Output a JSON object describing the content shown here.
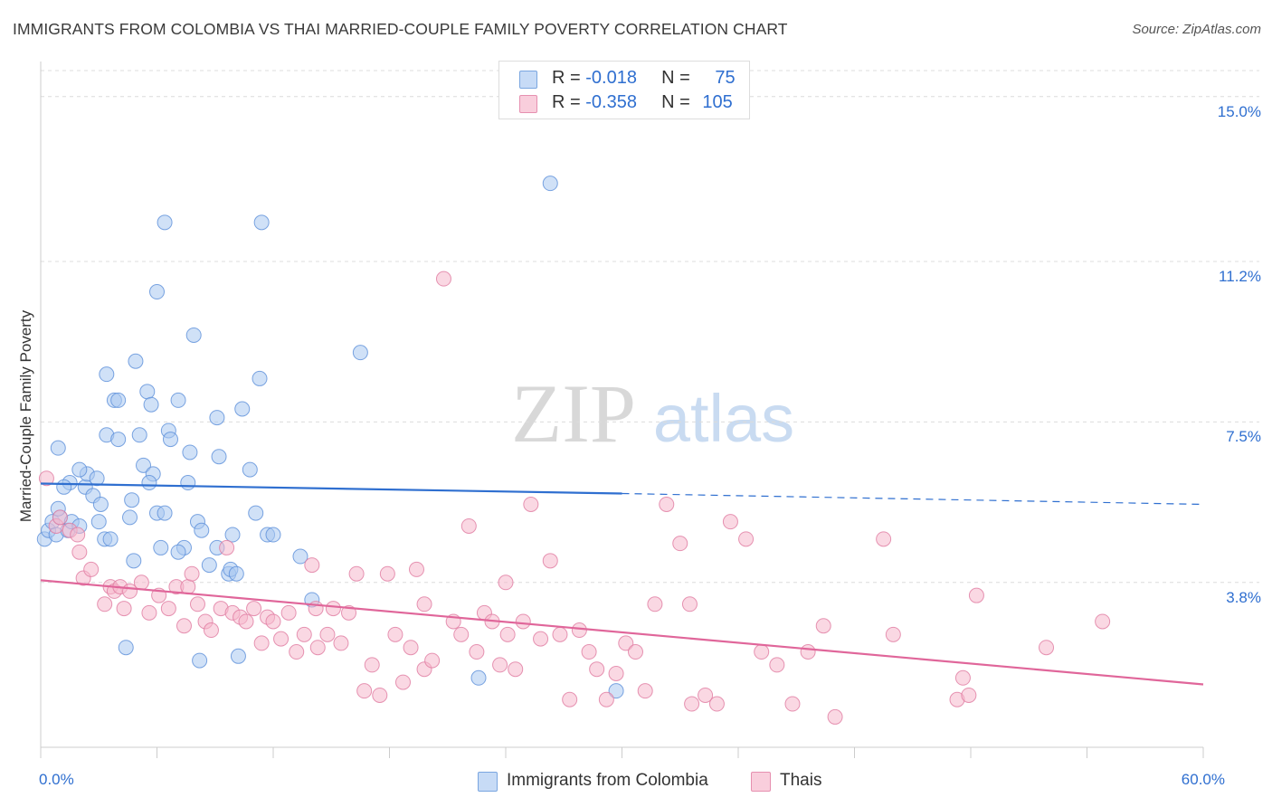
{
  "header": {
    "title": "IMMIGRANTS FROM COLOMBIA VS THAI MARRIED-COUPLE FAMILY POVERTY CORRELATION CHART",
    "source": "Source: ZipAtlas.com"
  },
  "watermark": {
    "zip": "ZIP",
    "atlas": "atlas"
  },
  "stats": [
    {
      "r_label": "R = ",
      "r_value": "-0.018",
      "n_label": "N = ",
      "n_value": "75",
      "color": "#aac8f0"
    },
    {
      "r_label": "R = ",
      "r_value": "-0.358",
      "n_label": "N = ",
      "n_value": "105",
      "color": "#f5b8cc"
    }
  ],
  "legend": [
    {
      "label": "Immigrants from Colombia",
      "color": "#aac8f0"
    },
    {
      "label": "Thais",
      "color": "#f5b8cc"
    }
  ],
  "chart_data": {
    "type": "scatter",
    "xlabel": "",
    "ylabel": "Married-Couple Family Poverty",
    "xlim": [
      0,
      60
    ],
    "ylim": [
      0,
      15.6
    ],
    "x_tick_labels": [
      {
        "value": 0,
        "label": "0.0%"
      },
      {
        "value": 60,
        "label": "60.0%"
      }
    ],
    "y_tick_labels": [
      {
        "value": 3.8,
        "label": "3.8%"
      },
      {
        "value": 7.5,
        "label": "7.5%"
      },
      {
        "value": 11.2,
        "label": "11.2%"
      },
      {
        "value": 15.0,
        "label": "15.0%"
      }
    ],
    "grid": "horizontal dashed",
    "legend_position": "bottom-center",
    "series": [
      {
        "name": "Immigrants from Colombia",
        "color": "#5b8fd9",
        "fill": "#aac8f0",
        "trend": {
          "x0": 0,
          "y0": 6.08,
          "x1": 30,
          "y1": 5.85,
          "x_dash_end": 60,
          "y_dash_end": 5.6
        },
        "points": [
          [
            0.2,
            4.8
          ],
          [
            0.4,
            5.0
          ],
          [
            0.6,
            5.2
          ],
          [
            0.8,
            4.9
          ],
          [
            1.0,
            5.3
          ],
          [
            0.9,
            5.5
          ],
          [
            0.9,
            6.9
          ],
          [
            1.4,
            5.0
          ],
          [
            1.6,
            5.2
          ],
          [
            1.5,
            6.1
          ],
          [
            2.0,
            5.1
          ],
          [
            2.3,
            6.0
          ],
          [
            2.4,
            6.3
          ],
          [
            2.0,
            6.4
          ],
          [
            2.7,
            5.8
          ],
          [
            3.0,
            5.2
          ],
          [
            3.3,
            4.8
          ],
          [
            3.1,
            5.6
          ],
          [
            3.4,
            8.6
          ],
          [
            3.8,
            8.0
          ],
          [
            3.4,
            7.2
          ],
          [
            4.0,
            8.0
          ],
          [
            4.0,
            7.1
          ],
          [
            4.7,
            5.7
          ],
          [
            4.6,
            5.3
          ],
          [
            4.9,
            8.9
          ],
          [
            5.1,
            7.2
          ],
          [
            5.3,
            6.5
          ],
          [
            5.5,
            8.2
          ],
          [
            5.7,
            7.9
          ],
          [
            5.8,
            6.3
          ],
          [
            6.0,
            5.4
          ],
          [
            6.2,
            4.6
          ],
          [
            6.0,
            10.5
          ],
          [
            6.4,
            12.1
          ],
          [
            6.6,
            7.3
          ],
          [
            6.7,
            7.1
          ],
          [
            7.1,
            8.0
          ],
          [
            7.4,
            4.6
          ],
          [
            7.6,
            6.1
          ],
          [
            7.7,
            6.8
          ],
          [
            7.9,
            9.5
          ],
          [
            8.1,
            5.2
          ],
          [
            8.3,
            5.0
          ],
          [
            8.7,
            4.2
          ],
          [
            9.1,
            7.6
          ],
          [
            9.1,
            4.6
          ],
          [
            9.7,
            4.0
          ],
          [
            9.8,
            4.1
          ],
          [
            9.9,
            4.9
          ],
          [
            10.1,
            4.0
          ],
          [
            10.4,
            7.8
          ],
          [
            10.8,
            6.4
          ],
          [
            11.1,
            5.4
          ],
          [
            11.3,
            8.5
          ],
          [
            11.4,
            12.1
          ],
          [
            11.7,
            4.9
          ],
          [
            12.0,
            4.9
          ],
          [
            13.4,
            4.4
          ],
          [
            14.0,
            3.4
          ],
          [
            16.5,
            9.1
          ],
          [
            26.3,
            13.0
          ],
          [
            29.7,
            1.3
          ],
          [
            22.6,
            1.6
          ],
          [
            8.2,
            2.0
          ],
          [
            10.2,
            2.1
          ],
          [
            4.4,
            2.3
          ],
          [
            4.8,
            4.3
          ],
          [
            3.6,
            4.8
          ],
          [
            6.4,
            5.4
          ],
          [
            7.1,
            4.5
          ],
          [
            2.9,
            6.2
          ],
          [
            1.2,
            6.0
          ],
          [
            5.6,
            6.1
          ],
          [
            9.2,
            6.7
          ]
        ]
      },
      {
        "name": "Thais",
        "color": "#e07aa0",
        "fill": "#f5b8cc",
        "trend": {
          "x0": 0,
          "y0": 3.85,
          "x1": 60,
          "y1": 1.45
        },
        "points": [
          [
            0.3,
            6.2
          ],
          [
            0.8,
            5.1
          ],
          [
            1.0,
            5.3
          ],
          [
            1.5,
            5.0
          ],
          [
            1.9,
            4.9
          ],
          [
            2.0,
            4.5
          ],
          [
            2.2,
            3.9
          ],
          [
            2.6,
            4.1
          ],
          [
            3.3,
            3.3
          ],
          [
            3.6,
            3.7
          ],
          [
            3.8,
            3.6
          ],
          [
            4.1,
            3.7
          ],
          [
            4.3,
            3.2
          ],
          [
            4.6,
            3.6
          ],
          [
            5.2,
            3.8
          ],
          [
            5.6,
            3.1
          ],
          [
            6.1,
            3.5
          ],
          [
            6.6,
            3.2
          ],
          [
            7.0,
            3.7
          ],
          [
            7.4,
            2.8
          ],
          [
            7.6,
            3.7
          ],
          [
            7.8,
            4.0
          ],
          [
            8.1,
            3.3
          ],
          [
            8.5,
            2.9
          ],
          [
            8.8,
            2.7
          ],
          [
            9.3,
            3.2
          ],
          [
            9.6,
            4.6
          ],
          [
            9.9,
            3.1
          ],
          [
            10.3,
            3.0
          ],
          [
            10.6,
            2.9
          ],
          [
            11.0,
            3.2
          ],
          [
            11.4,
            2.4
          ],
          [
            11.7,
            3.0
          ],
          [
            12.0,
            2.9
          ],
          [
            12.4,
            2.5
          ],
          [
            12.8,
            3.1
          ],
          [
            13.2,
            2.2
          ],
          [
            13.6,
            2.6
          ],
          [
            14.0,
            4.2
          ],
          [
            14.3,
            2.3
          ],
          [
            14.8,
            2.6
          ],
          [
            15.1,
            3.2
          ],
          [
            15.5,
            2.4
          ],
          [
            15.9,
            3.1
          ],
          [
            16.3,
            4.0
          ],
          [
            16.7,
            1.3
          ],
          [
            17.1,
            1.9
          ],
          [
            17.5,
            1.2
          ],
          [
            17.9,
            4.0
          ],
          [
            18.3,
            2.6
          ],
          [
            18.7,
            1.5
          ],
          [
            19.1,
            2.3
          ],
          [
            19.4,
            4.1
          ],
          [
            19.8,
            1.8
          ],
          [
            20.2,
            2.0
          ],
          [
            20.8,
            10.8
          ],
          [
            21.3,
            2.9
          ],
          [
            21.7,
            2.6
          ],
          [
            22.1,
            5.1
          ],
          [
            22.5,
            2.2
          ],
          [
            22.9,
            3.1
          ],
          [
            23.3,
            2.9
          ],
          [
            23.7,
            1.9
          ],
          [
            24.1,
            2.6
          ],
          [
            24.5,
            1.8
          ],
          [
            24.9,
            2.9
          ],
          [
            25.3,
            5.6
          ],
          [
            25.8,
            2.5
          ],
          [
            26.3,
            4.3
          ],
          [
            26.8,
            2.6
          ],
          [
            27.3,
            1.1
          ],
          [
            27.8,
            2.7
          ],
          [
            28.3,
            2.2
          ],
          [
            28.7,
            1.8
          ],
          [
            29.2,
            1.1
          ],
          [
            29.7,
            1.7
          ],
          [
            30.2,
            2.4
          ],
          [
            30.7,
            2.2
          ],
          [
            31.2,
            1.3
          ],
          [
            31.7,
            3.3
          ],
          [
            32.3,
            5.6
          ],
          [
            33.0,
            4.7
          ],
          [
            33.6,
            1.0
          ],
          [
            34.3,
            1.2
          ],
          [
            34.9,
            1.0
          ],
          [
            35.6,
            5.2
          ],
          [
            36.4,
            4.8
          ],
          [
            37.2,
            2.2
          ],
          [
            38.0,
            1.9
          ],
          [
            38.8,
            1.0
          ],
          [
            39.6,
            2.2
          ],
          [
            40.4,
            2.8
          ],
          [
            41.0,
            0.7
          ],
          [
            43.5,
            4.8
          ],
          [
            44.0,
            2.6
          ],
          [
            47.3,
            1.1
          ],
          [
            47.6,
            1.6
          ],
          [
            47.9,
            1.2
          ],
          [
            48.3,
            3.5
          ],
          [
            51.9,
            2.3
          ],
          [
            54.8,
            2.9
          ],
          [
            33.5,
            3.3
          ],
          [
            24.0,
            3.8
          ],
          [
            14.2,
            3.2
          ],
          [
            19.8,
            3.3
          ]
        ]
      }
    ]
  }
}
